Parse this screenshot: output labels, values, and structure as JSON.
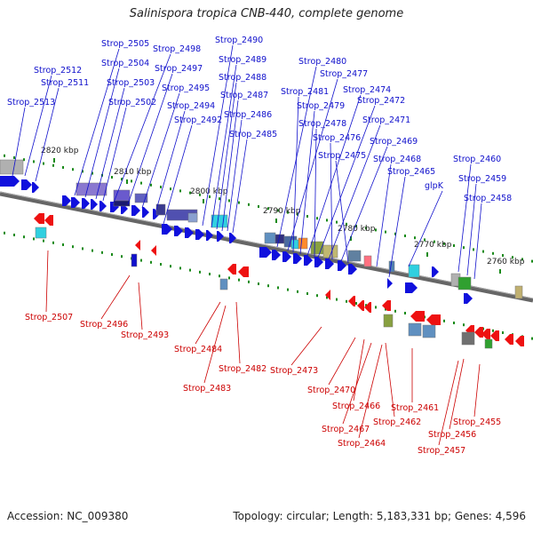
{
  "title": "Salinispora tropica CNB-440, complete genome",
  "footer": {
    "accession": "Accession: NC_009380",
    "summary": "Topology: circular; Length: 5,183,331 bp; Genes: 4,596"
  },
  "colors": {
    "forward": "#1010dd",
    "reverse": "#ee1111",
    "backbone": "#666666",
    "tick": "#1a8a1a",
    "label_forward": "#1010cc",
    "label_reverse": "#cc0000"
  },
  "scale_labels": [
    "2820 kbp",
    "2810 kbp",
    "2800 kbp",
    "2790 kbp",
    "2780 kbp",
    "2770 kbp",
    "2760 kbp"
  ],
  "forward_labels": [
    "Strop_2513",
    "Strop_2512",
    "Strop_2511",
    "Strop_2505",
    "Strop_2504",
    "Strop_2503",
    "Strop_2502",
    "Strop_2498",
    "Strop_2497",
    "Strop_2495",
    "Strop_2494",
    "Strop_2492",
    "Strop_2490",
    "Strop_2489",
    "Strop_2488",
    "Strop_2487",
    "Strop_2486",
    "Strop_2485",
    "Strop_2480",
    "Strop_2477",
    "Strop_2481",
    "Strop_2479",
    "Strop_2474",
    "Strop_2472",
    "Strop_2478",
    "Strop_2471",
    "Strop_2476",
    "Strop_2469",
    "Strop_2475",
    "Strop_2468",
    "Strop_2465",
    "glpK",
    "Strop_2460",
    "Strop_2459",
    "Strop_2458"
  ],
  "reverse_labels": [
    "Strop_2507",
    "Strop_2496",
    "Strop_2493",
    "Strop_2484",
    "Strop_2483",
    "Strop_2482",
    "Strop_2473",
    "Strop_2470",
    "Strop_2466",
    "Strop_2467",
    "Strop_2464",
    "Strop_2462",
    "Strop_2461",
    "Strop_2455",
    "Strop_2456",
    "Strop_2457"
  ]
}
